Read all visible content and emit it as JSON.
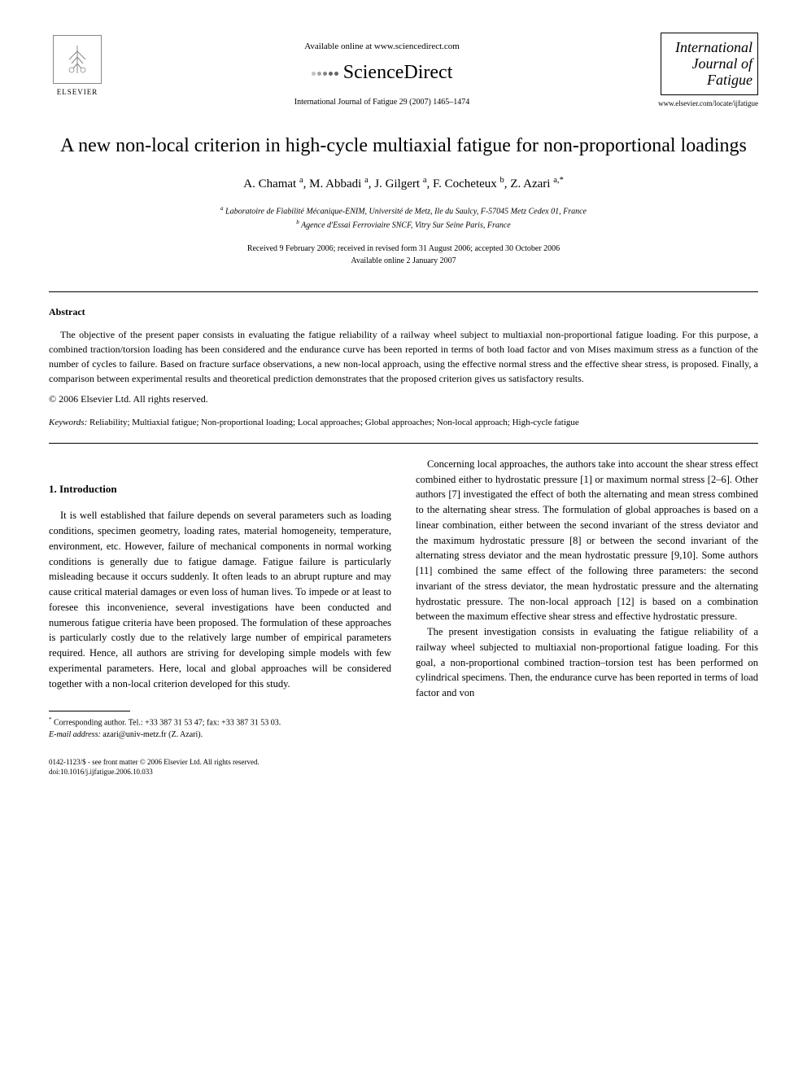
{
  "header": {
    "available_online": "Available online at www.sciencedirect.com",
    "sciencedirect": "ScienceDirect",
    "journal_ref": "International Journal of Fatigue 29 (2007) 1465–1474",
    "elsevier_label": "ELSEVIER",
    "journal_logo_line1": "International",
    "journal_logo_line2": "Journal of",
    "journal_logo_line3": "Fatigue",
    "journal_url": "www.elsevier.com/locate/ijfatigue"
  },
  "title": "A new non-local criterion in high-cycle multiaxial fatigue for non-proportional loadings",
  "authors_html": "A. Chamat <sup>a</sup>, M. Abbadi <sup>a</sup>, J. Gilgert <sup>a</sup>, F. Cocheteux <sup>b</sup>, Z. Azari <sup>a,*</sup>",
  "affiliations": {
    "a": "Laboratoire de Fiabilité Mécanique-ENIM, Université de Metz, Ile du Saulcy, F-57045 Metz Cedex 01, France",
    "b": "Agence d'Essai Ferroviaire SNCF, Vitry Sur Seine Paris, France"
  },
  "dates": {
    "received": "Received 9 February 2006; received in revised form 31 August 2006; accepted 30 October 2006",
    "online": "Available online 2 January 2007"
  },
  "abstract": {
    "heading": "Abstract",
    "text": "The objective of the present paper consists in evaluating the fatigue reliability of a railway wheel subject to multiaxial non-proportional fatigue loading. For this purpose, a combined traction/torsion loading has been considered and the endurance curve has been reported in terms of both load factor and von Mises maximum stress as a function of the number of cycles to failure. Based on fracture surface observations, a new non-local approach, using the effective normal stress and the effective shear stress, is proposed. Finally, a comparison between experimental results and theoretical prediction demonstrates that the proposed criterion gives us satisfactory results.",
    "copyright": "© 2006 Elsevier Ltd. All rights reserved."
  },
  "keywords": {
    "label": "Keywords:",
    "text": "Reliability; Multiaxial fatigue; Non-proportional loading; Local approaches; Global approaches; Non-local approach; High-cycle fatigue"
  },
  "section1": {
    "heading": "1. Introduction",
    "para1": "It is well established that failure depends on several parameters such as loading conditions, specimen geometry, loading rates, material homogeneity, temperature, environment, etc. However, failure of mechanical components in normal working conditions is generally due to fatigue damage. Fatigue failure is particularly misleading because it occurs suddenly. It often leads to an abrupt rupture and may cause critical material damages or even loss of human lives. To impede or at least to foresee this inconvenience, several investigations have been conducted and numerous fatigue criteria have been proposed. The formulation of these approaches is particularly costly due to the relatively large number of empirical parameters required. Hence, all authors are striving for developing simple models with few experimental parameters. Here, local and global approaches will be considered together with a non-local criterion developed for this study.",
    "para2": "Concerning local approaches, the authors take into account the shear stress effect combined either to hydrostatic pressure [1] or maximum normal stress [2–6]. Other authors [7] investigated the effect of both the alternating and mean stress combined to the alternating shear stress. The formulation of global approaches is based on a linear combination, either between the second invariant of the stress deviator and the maximum hydrostatic pressure [8] or between the second invariant of the alternating stress deviator and the mean hydrostatic pressure [9,10]. Some authors [11] combined the same effect of the following three parameters: the second invariant of the stress deviator, the mean hydrostatic pressure and the alternating hydrostatic pressure. The non-local approach [12] is based on a combination between the maximum effective shear stress and effective hydrostatic pressure.",
    "para3": "The present investigation consists in evaluating the fatigue reliability of a railway wheel subjected to multiaxial non-proportional fatigue loading. For this goal, a non-proportional combined traction–torsion test has been performed on cylindrical specimens. Then, the endurance curve has been reported in terms of load factor and von"
  },
  "footnote": {
    "corresponding": "Corresponding author. Tel.: +33 387 31 53 47; fax: +33 387 31 53 03.",
    "email_label": "E-mail address:",
    "email": "azari@univ-metz.fr",
    "email_person": "(Z. Azari)."
  },
  "doi": {
    "line1": "0142-1123/$ - see front matter © 2006 Elsevier Ltd. All rights reserved.",
    "line2": "doi:10.1016/j.ijfatigue.2006.10.033"
  }
}
